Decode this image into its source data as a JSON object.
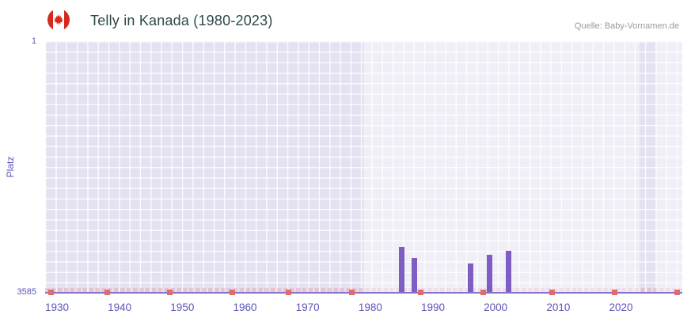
{
  "header": {
    "title": "Telly in Kanada (1980-2023)",
    "source": "Quelle: Baby-Vornamen.de"
  },
  "axes": {
    "y_label": "Platz",
    "y_tick_top": "1",
    "y_tick_bottom": "3585",
    "x_ticks": [
      "1930",
      "1940",
      "1950",
      "1960",
      "1970",
      "1980",
      "1990",
      "2000",
      "2010",
      "2020"
    ]
  },
  "chart_data": {
    "type": "bar",
    "title": "Telly in Kanada (1980-2023)",
    "xlabel": "",
    "ylabel": "Platz",
    "x": [
      1985,
      1987,
      1996,
      1999,
      2002
    ],
    "values": [
      2930,
      3090,
      3170,
      3040,
      2990
    ],
    "value_meaning": "Platz (rank) of the name Telly in Canada; lower is better; bars rise from the 3585 baseline up to the rank value",
    "xlim": [
      1928,
      2030
    ],
    "ylim": [
      1,
      3585
    ],
    "y_inverted": true,
    "grid": true,
    "legend": "none",
    "highlight_region_years": [
      1979,
      2023
    ],
    "no_rank_marker_years": [
      1929,
      1938,
      1948,
      1958,
      1967,
      1977,
      1988,
      1998,
      2009,
      2019,
      2029
    ],
    "colors": {
      "bar": "#7e5ec2",
      "axis_line": "#8273cc",
      "tick_label": "#5c55b8",
      "plot_background": "#e4e1f1",
      "highlight_background": "#efedf8",
      "no_rank_marker": "#e06b6b",
      "no_rank_strip": "#f3ccd3",
      "title": "#2e4747",
      "source": "#9a9a9a",
      "flag_red": "#d52b1e"
    }
  }
}
